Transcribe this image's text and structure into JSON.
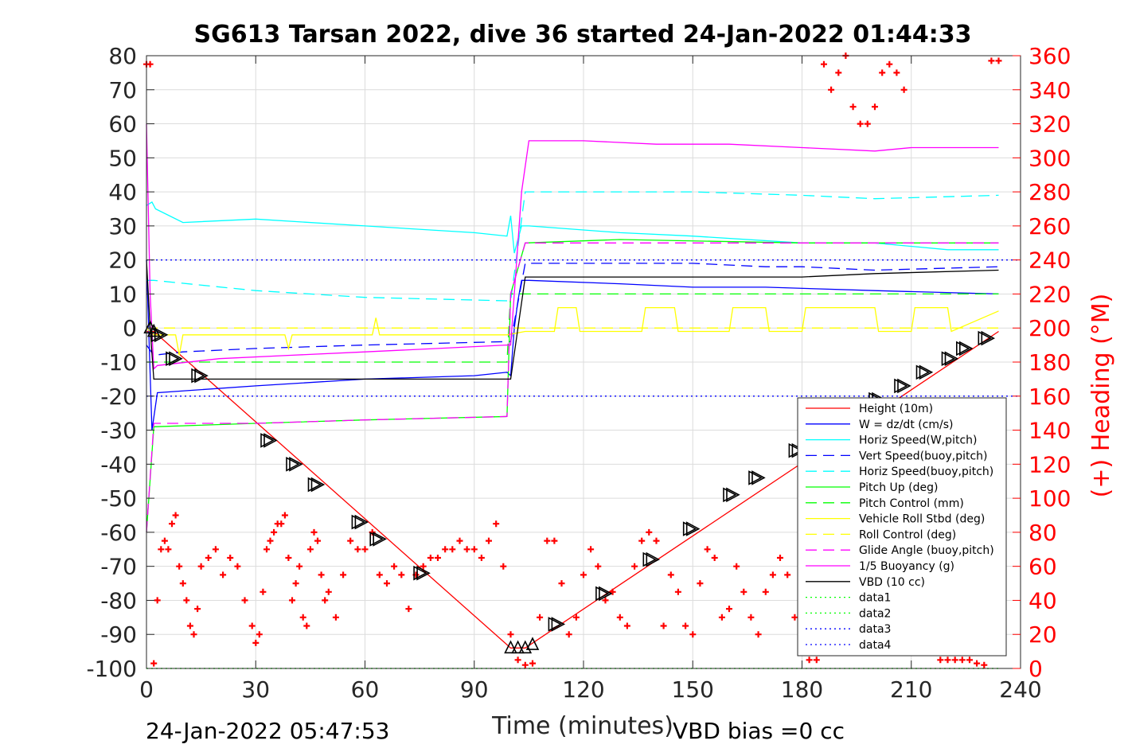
{
  "chart_data": {
    "type": "line",
    "title": "SG613 Tarsan 2022, dive 36 started 24-Jan-2022 01:44:33",
    "xlabel": "Time (minutes)",
    "ylabel": "",
    "y2label": "(+) Heading (°M)",
    "xlim": [
      0,
      240
    ],
    "ylim": [
      -100,
      80
    ],
    "y2lim": [
      0,
      360
    ],
    "xticks": [
      "0",
      "30",
      "60",
      "90",
      "120",
      "150",
      "180",
      "210",
      "240"
    ],
    "yticks": [
      "80",
      "70",
      "60",
      "50",
      "40",
      "30",
      "20",
      "10",
      "0",
      "-10",
      "-20",
      "-30",
      "-40",
      "-50",
      "-60",
      "-70",
      "-80",
      "-90",
      "-100"
    ],
    "y2ticks": [
      "360",
      "340",
      "320",
      "300",
      "280",
      "260",
      "240",
      "220",
      "200",
      "180",
      "160",
      "140",
      "120",
      "100",
      "80",
      "60",
      "40",
      "20",
      "0"
    ],
    "footer_left": "24-Jan-2022 05:47:53",
    "footer_right": "VBD bias =0 cc",
    "grid": true,
    "legend_position": "lower-right",
    "series": [
      {
        "name": "Height (10m)",
        "color": "#ff0000",
        "dash": "solid",
        "x": [
          0,
          2,
          100,
          104,
          234
        ],
        "y": [
          -1,
          -1,
          -94,
          -94,
          -1
        ]
      },
      {
        "name": "W = dz/dt (cm/s)",
        "color": "#0000ff",
        "dash": "solid",
        "x": [
          0,
          1.5,
          3,
          30,
          60,
          90,
          99,
          100,
          101,
          102,
          103,
          105,
          130,
          150,
          170,
          200,
          234
        ],
        "y": [
          20,
          -30,
          -19,
          -17,
          -15,
          -14,
          -13,
          -14,
          0,
          8,
          14,
          14,
          13,
          12,
          12,
          11,
          10
        ]
      },
      {
        "name": "Horiz Speed(W,pitch)",
        "color": "#00ffff",
        "dash": "solid",
        "x": [
          0,
          1.5,
          2.5,
          10,
          30,
          60,
          90,
          99,
          100,
          101,
          102,
          103,
          105,
          130,
          150,
          180,
          200,
          220,
          234
        ],
        "y": [
          36,
          37,
          35,
          31,
          32,
          30,
          28,
          27,
          33,
          22,
          26,
          30,
          30,
          28,
          27,
          25,
          25,
          23,
          23
        ]
      },
      {
        "name": "Vert Speed(buoy,pitch)",
        "color": "#0000ff",
        "dash": "long",
        "x": [
          0,
          2,
          10,
          30,
          60,
          99,
          100,
          104,
          120,
          150,
          170,
          180,
          200,
          234
        ],
        "y": [
          -5,
          -8,
          -7,
          -6,
          -5,
          -4,
          -4,
          19,
          19,
          19,
          18,
          18,
          17,
          18
        ]
      },
      {
        "name": "Horiz Speed(buoy,pitch)",
        "color": "#00ffff",
        "dash": "long",
        "x": [
          0,
          2,
          30,
          60,
          99,
          100,
          104,
          120,
          150,
          180,
          200,
          234
        ],
        "y": [
          14,
          14,
          11,
          9,
          8,
          8,
          40,
          40,
          40,
          39,
          38,
          39
        ]
      },
      {
        "name": "Pitch Up (deg)",
        "color": "#00ff00",
        "dash": "solid",
        "x": [
          0,
          2,
          30,
          60,
          99,
          100,
          104,
          130,
          180,
          234
        ],
        "y": [
          -60,
          -29,
          -28,
          -27,
          -26,
          10,
          25,
          26,
          25,
          25
        ]
      },
      {
        "name": "Pitch Control (mm)",
        "color": "#00ff00",
        "dash": "long",
        "x": [
          0,
          2,
          99,
          100,
          104,
          234
        ],
        "y": [
          -10,
          -10,
          -10,
          10,
          10,
          10
        ]
      },
      {
        "name": "Vehicle Roll Stbd (deg)",
        "color": "#ffff00",
        "dash": "solid",
        "x": [
          0,
          2,
          8,
          9,
          10,
          30,
          38,
          39,
          40,
          60,
          62,
          63,
          64,
          99,
          104,
          112,
          113,
          118,
          119,
          130,
          136,
          137,
          145,
          146,
          160,
          161,
          170,
          171,
          180,
          181,
          200,
          201,
          210,
          211,
          220,
          221,
          234
        ],
        "y": [
          0,
          -2,
          -2,
          -8,
          -2,
          -2,
          -2,
          -6,
          -2,
          -2,
          -2,
          3,
          -2,
          -2,
          -1,
          -1,
          6,
          6,
          -1,
          -1,
          -1,
          6,
          6,
          -1,
          -1,
          6,
          6,
          -1,
          -1,
          6,
          6,
          -1,
          -1,
          6,
          6,
          -1,
          5
        ]
      },
      {
        "name": "Roll Control (deg)",
        "color": "#ffff00",
        "dash": "long",
        "x": [
          0,
          234
        ],
        "y": [
          0,
          0
        ]
      },
      {
        "name": "Glide Angle (buoy,pitch)",
        "color": "#ff00ff",
        "dash": "long",
        "x": [
          0,
          2,
          30,
          60,
          99,
          100,
          104,
          130,
          180,
          234
        ],
        "y": [
          -60,
          -28,
          -28,
          -27,
          -26,
          10,
          25,
          25,
          25,
          25
        ]
      },
      {
        "name": "1/5 Buoyancy (g)",
        "color": "#ff00ff",
        "dash": "solid",
        "x": [
          0,
          1,
          2,
          3,
          20,
          40,
          60,
          80,
          99,
          100,
          103,
          105,
          120,
          140,
          160,
          180,
          200,
          210,
          225,
          234
        ],
        "y": [
          60,
          10,
          -12,
          -11,
          -9,
          -8,
          -7,
          -6,
          -5,
          -5,
          40,
          55,
          55,
          54,
          54,
          53,
          52,
          53,
          53,
          53
        ]
      },
      {
        "name": "VBD (10 cc)",
        "color": "#000000",
        "dash": "solid",
        "x": [
          0,
          1,
          2,
          99,
          100,
          104,
          180,
          200,
          234
        ],
        "y": [
          20,
          0,
          -15,
          -15,
          -15,
          15,
          15,
          16,
          17
        ]
      },
      {
        "name": "data1",
        "color": "#00ff00",
        "dash": "dot",
        "x": [
          0,
          234
        ],
        "y": [
          -100,
          -100
        ]
      },
      {
        "name": "data2",
        "color": "#00ff00",
        "dash": "dot",
        "x": [
          0,
          234
        ],
        "y": [
          -100,
          -100
        ]
      },
      {
        "name": "data3",
        "color": "#0000ff",
        "dash": "dot",
        "x": [
          0,
          240
        ],
        "y": [
          20,
          20
        ]
      },
      {
        "name": "data4",
        "color": "#0000ff",
        "dash": "dot",
        "x": [
          0,
          240
        ],
        "y": [
          -20,
          -20
        ]
      }
    ],
    "heading_series": {
      "color": "#ff0000",
      "marker": "+",
      "axis": "right",
      "x": [
        0,
        1,
        2,
        3,
        4,
        5,
        6,
        7,
        8,
        9,
        10,
        11,
        12,
        13,
        14,
        15,
        17,
        19,
        21,
        23,
        25,
        27,
        29,
        30,
        31,
        32,
        33,
        34,
        35,
        36,
        37,
        38,
        39,
        40,
        41,
        42,
        43,
        44,
        45,
        46,
        47,
        48,
        49,
        50,
        52,
        54,
        56,
        58,
        60,
        62,
        64,
        66,
        68,
        70,
        72,
        74,
        76,
        78,
        80,
        82,
        84,
        86,
        88,
        90,
        92,
        94,
        96,
        98,
        100,
        102,
        104,
        106,
        108,
        110,
        112,
        114,
        116,
        118,
        120,
        122,
        124,
        126,
        128,
        130,
        132,
        134,
        136,
        138,
        140,
        142,
        144,
        146,
        148,
        150,
        152,
        154,
        156,
        158,
        160,
        162,
        164,
        166,
        168,
        170,
        172,
        174,
        176,
        178,
        180,
        182,
        184,
        186,
        188,
        190,
        192,
        194,
        196,
        198,
        200,
        202,
        204,
        206,
        208,
        210,
        212,
        214,
        216,
        218,
        220,
        222,
        224,
        226,
        228,
        230,
        232,
        234
      ],
      "y": [
        355,
        355,
        3,
        40,
        70,
        75,
        70,
        85,
        90,
        60,
        50,
        40,
        25,
        20,
        35,
        60,
        65,
        70,
        55,
        65,
        60,
        40,
        25,
        15,
        20,
        45,
        70,
        75,
        80,
        85,
        85,
        90,
        65,
        40,
        50,
        60,
        30,
        25,
        70,
        80,
        75,
        55,
        40,
        45,
        30,
        55,
        75,
        70,
        70,
        80,
        55,
        50,
        60,
        55,
        35,
        55,
        60,
        65,
        65,
        70,
        70,
        75,
        70,
        70,
        65,
        75,
        85,
        60,
        20,
        5,
        2,
        3,
        30,
        75,
        75,
        50,
        20,
        30,
        55,
        70,
        60,
        40,
        45,
        30,
        25,
        60,
        75,
        80,
        75,
        25,
        55,
        45,
        25,
        20,
        50,
        70,
        65,
        30,
        35,
        60,
        45,
        30,
        20,
        45,
        55,
        65,
        55,
        30,
        15,
        5,
        5,
        355,
        340,
        350,
        360,
        330,
        320,
        320,
        330,
        350,
        355,
        350,
        340,
        15,
        25,
        30,
        10,
        5,
        5,
        5,
        5,
        5,
        3,
        2,
        357,
        357
      ]
    },
    "markers": {
      "triangle_right": {
        "x": [
          3,
          7,
          14,
          33,
          40,
          46,
          58,
          63,
          75,
          112,
          125,
          138,
          149,
          160,
          167,
          178,
          200,
          207,
          213,
          220,
          224,
          230
        ],
        "y": [
          -2,
          -9,
          -14,
          -33,
          -40,
          -46,
          -57,
          -62,
          -72,
          -87,
          -78,
          -68,
          -59,
          -49,
          -44,
          -36,
          -21,
          -17,
          -13,
          -9,
          -6,
          -3
        ]
      },
      "triangle_up": {
        "x": [
          1,
          2,
          100,
          102,
          104,
          106
        ],
        "y": [
          0,
          -1,
          -94,
          -94,
          -94,
          -93
        ]
      }
    }
  },
  "legend_entries": [
    "Height (10m)",
    "W = dz/dt (cm/s)",
    "Horiz Speed(W,pitch)",
    "Vert Speed(buoy,pitch)",
    "Horiz Speed(buoy,pitch)",
    "Pitch Up (deg)",
    "Pitch Control (mm)",
    "Vehicle Roll Stbd (deg)",
    "Roll Control (deg)",
    "Glide Angle (buoy,pitch)",
    "1/5 Buoyancy (g)",
    "VBD (10 cc)",
    "data1",
    "data2",
    "data3",
    "data4"
  ]
}
